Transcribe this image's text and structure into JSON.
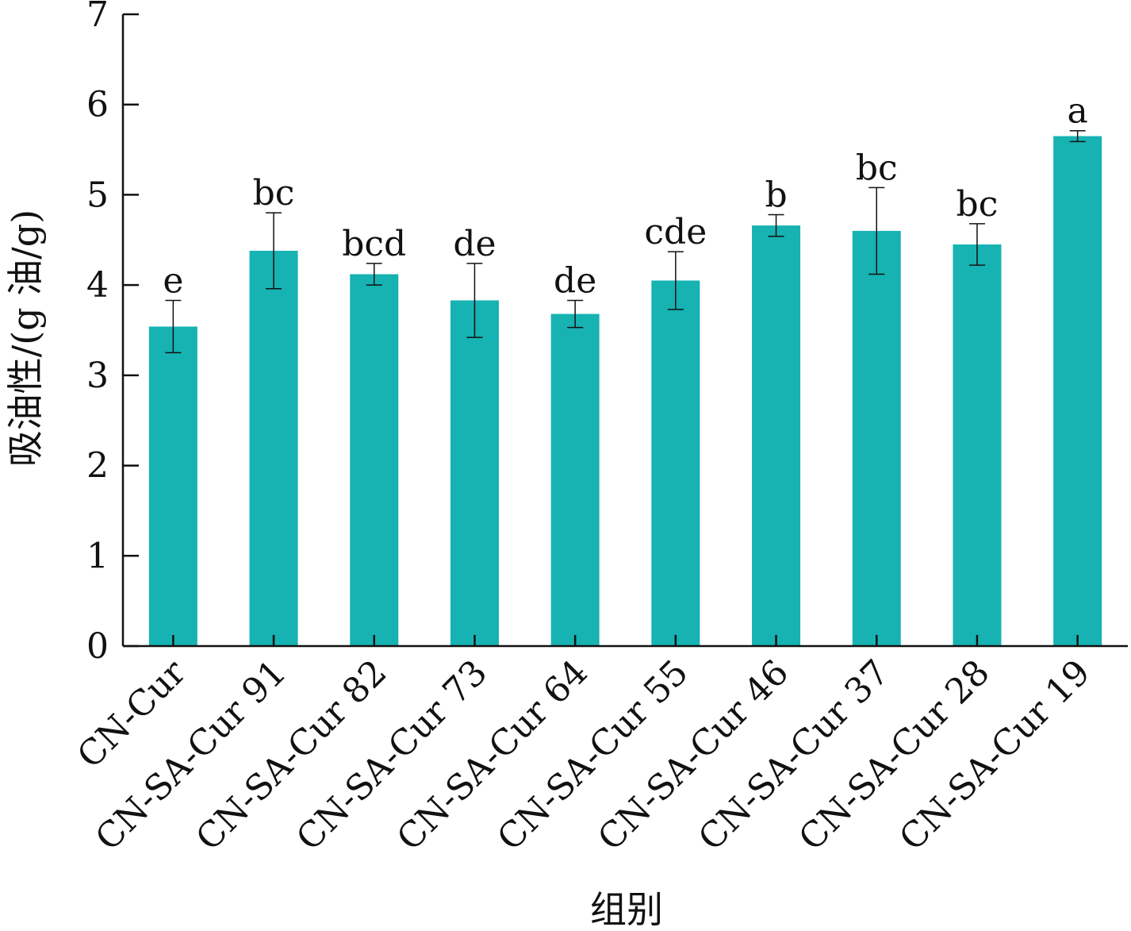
{
  "chart_data": {
    "type": "bar",
    "title": "",
    "xlabel": "组别",
    "ylabel": "吸油性/(g 油/g)",
    "ylim": [
      0,
      7
    ],
    "yticks": [
      "0",
      "1",
      "2",
      "3",
      "4",
      "5",
      "6",
      "7"
    ],
    "grid": false,
    "bar_color": "#17b2b2",
    "categories": [
      "CN-Cur",
      "CN-SA-Cur 91",
      "CN-SA-Cur 82",
      "CN-SA-Cur 73",
      "CN-SA-Cur 64",
      "CN-SA-Cur 55",
      "CN-SA-Cur 46",
      "CN-SA-Cur 37",
      "CN-SA-Cur 28",
      "CN-SA-Cur 19"
    ],
    "values": [
      3.54,
      4.38,
      4.12,
      3.83,
      3.68,
      4.05,
      4.66,
      4.6,
      4.45,
      5.65
    ],
    "errors": [
      0.29,
      0.42,
      0.12,
      0.41,
      0.15,
      0.32,
      0.12,
      0.48,
      0.23,
      0.06
    ],
    "significance": [
      "e",
      "bc",
      "bcd",
      "de",
      "de",
      "cde",
      "b",
      "bc",
      "bc",
      "a"
    ]
  }
}
